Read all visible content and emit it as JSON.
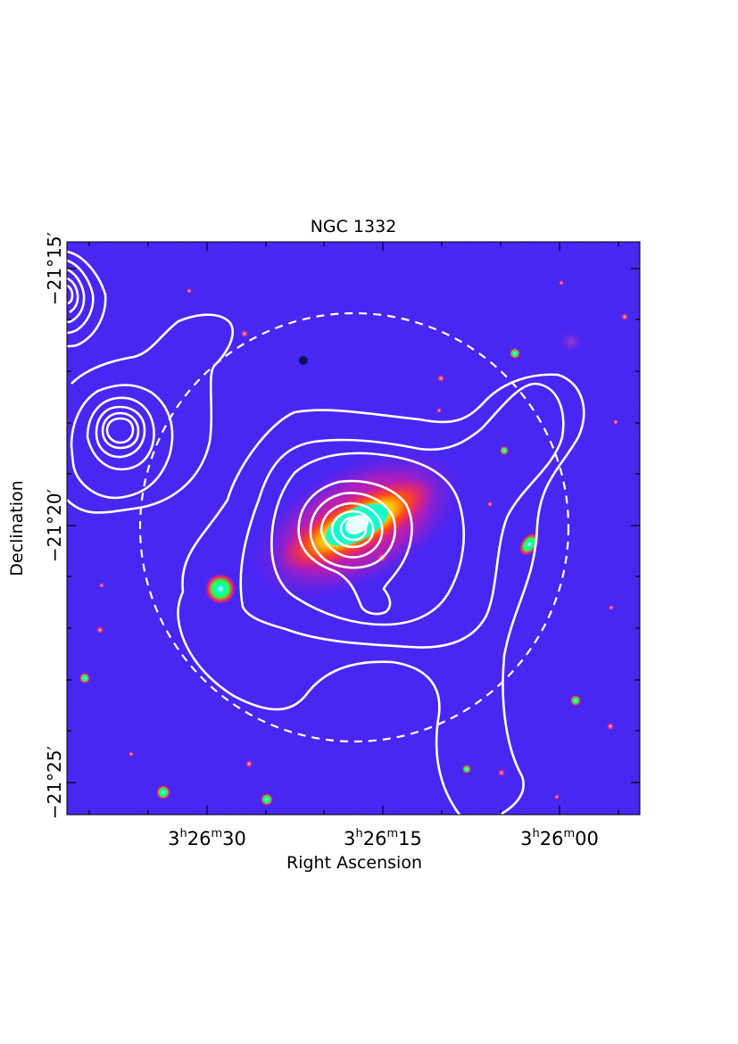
{
  "title": "NGC 1332",
  "xlabel": "Right Ascension",
  "ylabel": "Declination",
  "x_ticks": [
    {
      "h": "3",
      "m": "26",
      "s": "30"
    },
    {
      "h": "3",
      "m": "26",
      "s": "15"
    },
    {
      "h": "3",
      "m": "26",
      "s": "00"
    }
  ],
  "y_ticks": [
    {
      "deg": "−21°15′"
    },
    {
      "deg": "−21°20′"
    },
    {
      "deg": "−21°25′"
    }
  ],
  "colors": {
    "background_field": "#3a1ef0",
    "galaxy_halo": "#ff1a6a",
    "galaxy_mid": "#ff5a10",
    "galaxy_core": "#00ffd0",
    "contour": "#ffffff"
  }
}
